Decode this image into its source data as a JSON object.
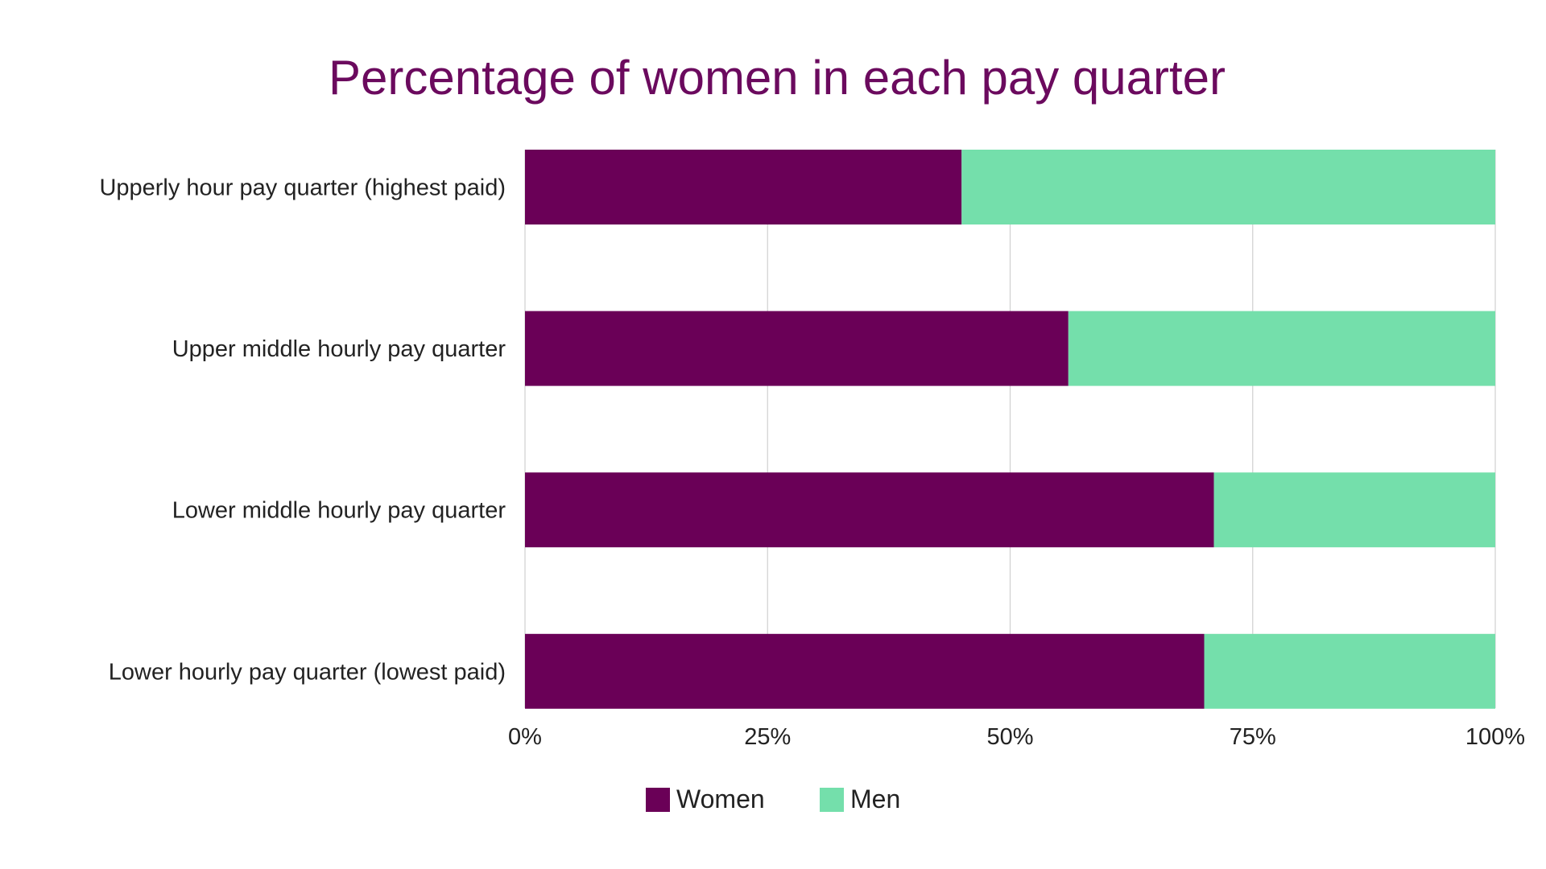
{
  "chart_data": {
    "type": "bar",
    "orientation": "horizontal",
    "stacked": "percent",
    "title": "Percentage of women in each pay quarter",
    "categories": [
      "Upperly hour pay quarter (highest paid)",
      "Upper middle hourly pay quarter",
      "Lower middle hourly pay quarter",
      "Lower hourly pay quarter (lowest paid)"
    ],
    "series": [
      {
        "name": "Women",
        "color": "#6a0057",
        "values": [
          45,
          56,
          71,
          70
        ]
      },
      {
        "name": "Men",
        "color": "#74dfab",
        "values": [
          55,
          44,
          29,
          30
        ]
      }
    ],
    "xlim": [
      0,
      100
    ],
    "x_ticks": [
      "0%",
      "25%",
      "50%",
      "75%",
      "100%"
    ],
    "x_tick_values": [
      0,
      25,
      50,
      75,
      100
    ],
    "grid": true,
    "legend_position": "bottom"
  }
}
